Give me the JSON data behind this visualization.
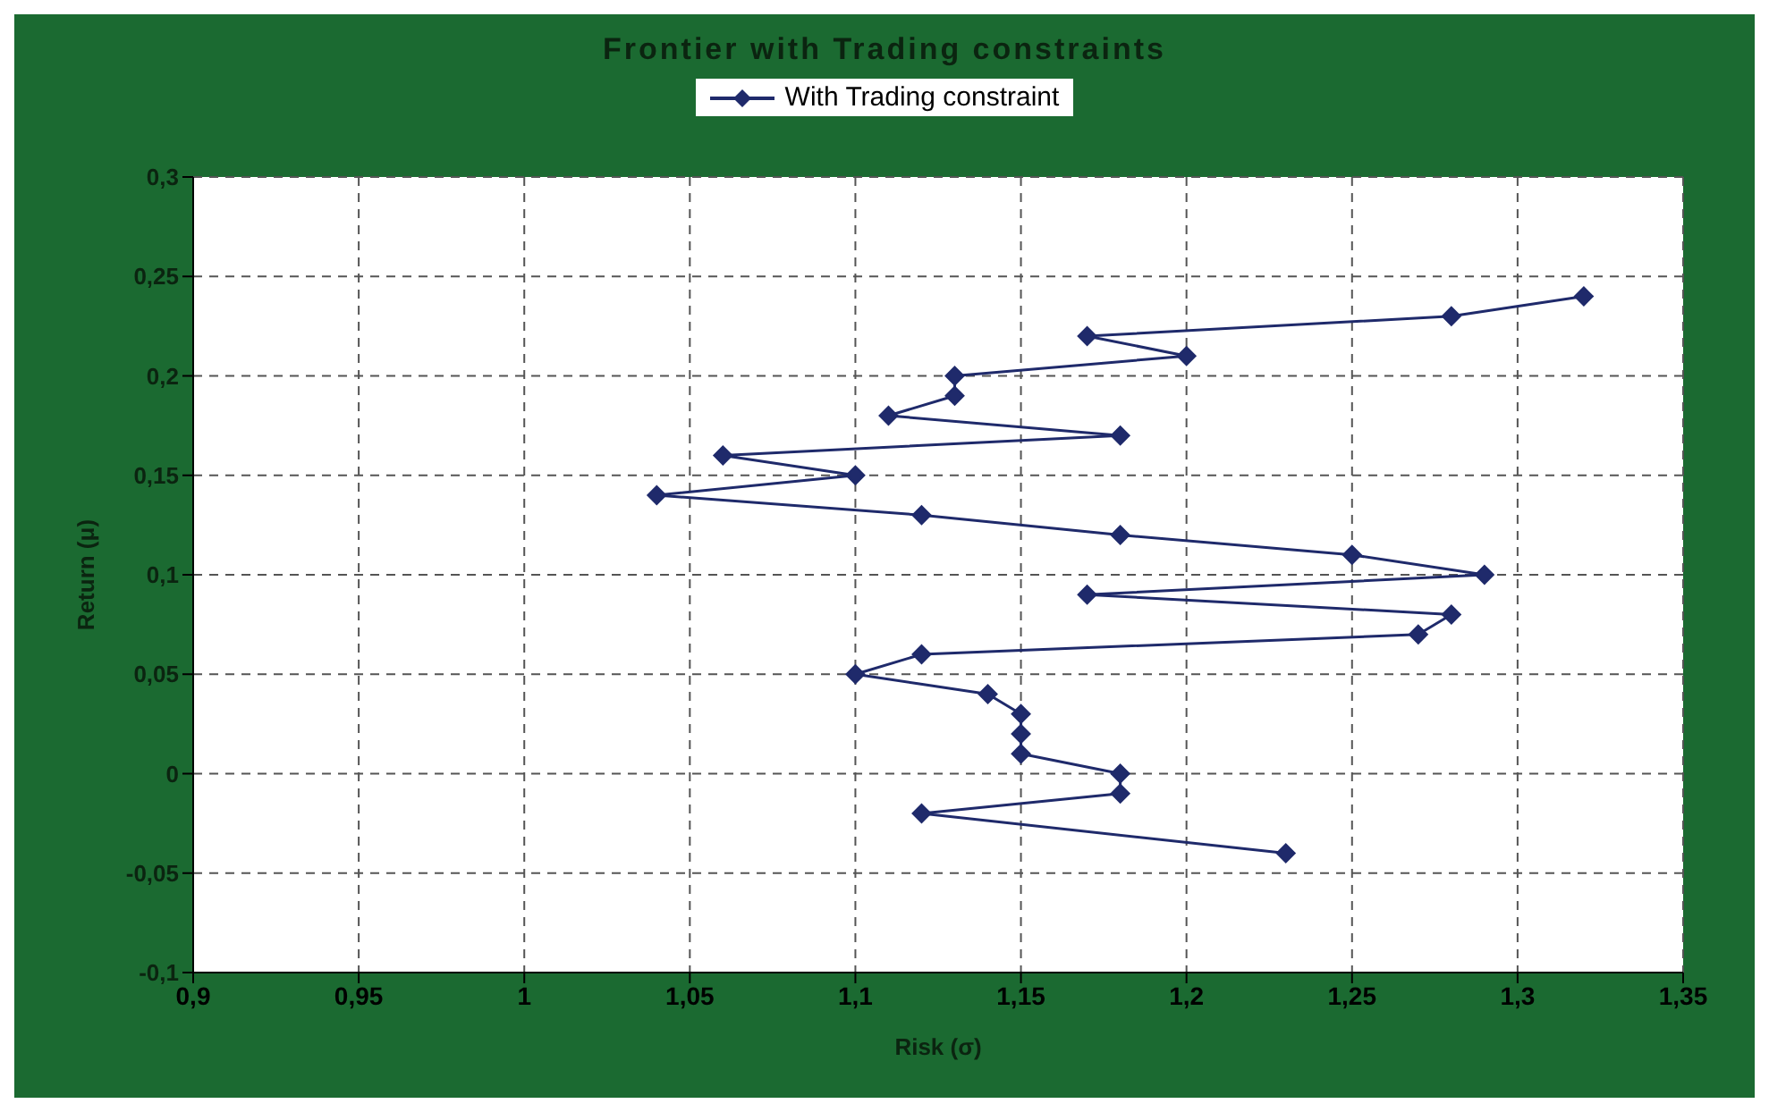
{
  "chart_data": {
    "type": "line",
    "title": "Frontier with Trading constraints",
    "xlabel": "Risk (σ)",
    "ylabel": "Return (μ)",
    "x": [
      1.32,
      1.28,
      1.17,
      1.2,
      1.13,
      1.13,
      1.11,
      1.18,
      1.06,
      1.1,
      1.04,
      1.12,
      1.18,
      1.25,
      1.29,
      1.17,
      1.28,
      1.27,
      1.12,
      1.1,
      1.14,
      1.15,
      1.15,
      1.15,
      1.18,
      1.18,
      1.12,
      1.23
    ],
    "series": [
      {
        "name": "With Trading constraint",
        "color": "#1f2a6b",
        "values": [
          0.24,
          0.23,
          0.22,
          0.21,
          0.2,
          0.19,
          0.18,
          0.17,
          0.16,
          0.15,
          0.14,
          0.13,
          0.12,
          0.11,
          0.1,
          0.09,
          0.08,
          0.07,
          0.06,
          0.05,
          0.04,
          0.03,
          0.02,
          0.01,
          0,
          -0.01,
          -0.02,
          -0.04
        ]
      }
    ],
    "xlim": [
      0.9,
      1.35
    ],
    "xticks": [
      {
        "value": 0.9,
        "label": "0,9"
      },
      {
        "value": 0.95,
        "label": "0,95"
      },
      1,
      {
        "value": 1.05,
        "label": "1,05"
      },
      {
        "value": 1.1,
        "label": "1,1"
      },
      {
        "value": 1.15,
        "label": "1,15"
      },
      {
        "value": 1.2,
        "label": "1,2"
      },
      {
        "value": 1.25,
        "label": "1,25"
      },
      {
        "value": 1.3,
        "label": "1,3"
      },
      {
        "value": 1.35,
        "label": "1,35"
      }
    ],
    "ylim": [
      -0.1,
      0.3
    ],
    "yticks": [
      {
        "value": -0.1,
        "label": "-0,1"
      },
      {
        "value": -0.05,
        "label": "-0,05"
      },
      0,
      {
        "value": 0.05,
        "label": "0,05"
      },
      {
        "value": 0.1,
        "label": "0,1"
      },
      {
        "value": 0.15,
        "label": "0,15"
      },
      {
        "value": 0.2,
        "label": "0,2"
      },
      {
        "value": 0.25,
        "label": "0,25"
      },
      {
        "value": 0.3,
        "label": "0,3"
      }
    ],
    "grid": true,
    "legend": "top",
    "marker": "diamond",
    "line_style": "solid"
  }
}
